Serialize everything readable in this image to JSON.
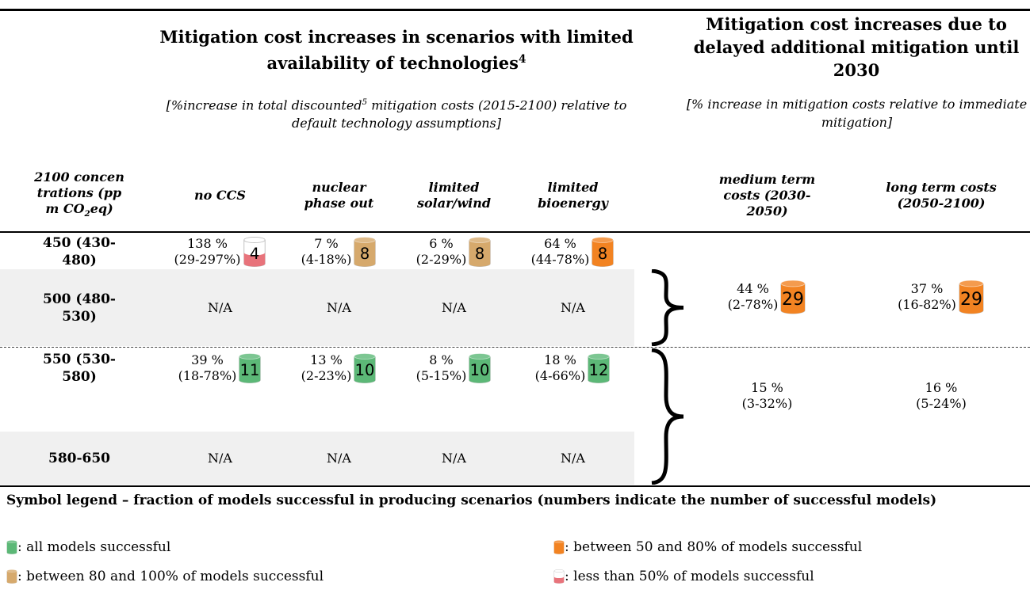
{
  "header": {
    "left_title": "Mitigation cost increases in scenarios with limited availability of technologies",
    "left_title_note": "4",
    "left_subtitle_parts": [
      "[%increase in total discounted",
      "5",
      " mitigation costs (2015-2100) relative to default technology assumptions]"
    ],
    "right_title": "Mitigation cost increases due to delayed additional mitigation until 2030",
    "right_subtitle": "[% increase in mitigation costs relative to immediate mitigation]"
  },
  "columns": {
    "concentration_parts": [
      "2100 concentrations (ppm CO",
      "2",
      "eq)"
    ],
    "tech": [
      "no CCS",
      "nuclear phase out",
      "limited solar/wind",
      "limited bioenergy"
    ],
    "delay": [
      "medium term costs (2030-2050)",
      "long term costs (2050-2100)"
    ]
  },
  "groups": [
    {
      "rows": [
        {
          "label": "450 (430-480)",
          "cells": [
            {
              "value": "138 %",
              "range": "(29-297%)",
              "models": 4,
              "color": "#e8737b"
            },
            {
              "value": "7 %",
              "range": "(4-18%)",
              "models": 8,
              "color": "#d6a96c"
            },
            {
              "value": "6 %",
              "range": "(2-29%)",
              "models": 8,
              "color": "#d6a96c"
            },
            {
              "value": "64 %",
              "range": "(44-78%)",
              "models": 8,
              "color": "#f28322"
            }
          ]
        },
        {
          "label": "500 (480-530)",
          "cells": [
            "N/A",
            "N/A",
            "N/A",
            "N/A"
          ]
        }
      ],
      "delay": [
        {
          "value": "44 %",
          "range": "(2-78%)",
          "models": 29,
          "color": "#f28322"
        },
        {
          "value": "37 %",
          "range": "(16-82%)",
          "models": 29,
          "color": "#f28322"
        }
      ]
    },
    {
      "rows": [
        {
          "label": "550 (530-580)",
          "cells": [
            {
              "value": "39 %",
              "range": "(18-78%)",
              "models": 11,
              "color": "#5cb877"
            },
            {
              "value": "13 %",
              "range": "(2-23%)",
              "models": 10,
              "color": "#5cb877"
            },
            {
              "value": "8 %",
              "range": "(5-15%)",
              "models": 10,
              "color": "#5cb877"
            },
            {
              "value": "18 %",
              "range": "(4-66%)",
              "models": 12,
              "color": "#5cb877"
            }
          ]
        },
        {
          "label": "580-650",
          "cells": [
            "N/A",
            "N/A",
            "N/A",
            "N/A"
          ]
        }
      ],
      "delay": [
        {
          "value": "15 %",
          "range": "(3-32%)"
        },
        {
          "value": "16 %",
          "range": "(5-24%)"
        }
      ]
    }
  ],
  "legend": {
    "title": "Symbol legend – fraction of models successful in producing scenarios (numbers indicate the number of successful models)",
    "items": [
      {
        "color": "#5cb877",
        "text": ": all models successful"
      },
      {
        "color": "#f28322",
        "text": ": between 50 and 80% of models successful"
      },
      {
        "color": "#d6a96c",
        "text": ": between 80 and 100% of models successful"
      },
      {
        "color": "#e8737b",
        "text": ": less than 50% of models successful"
      }
    ]
  }
}
